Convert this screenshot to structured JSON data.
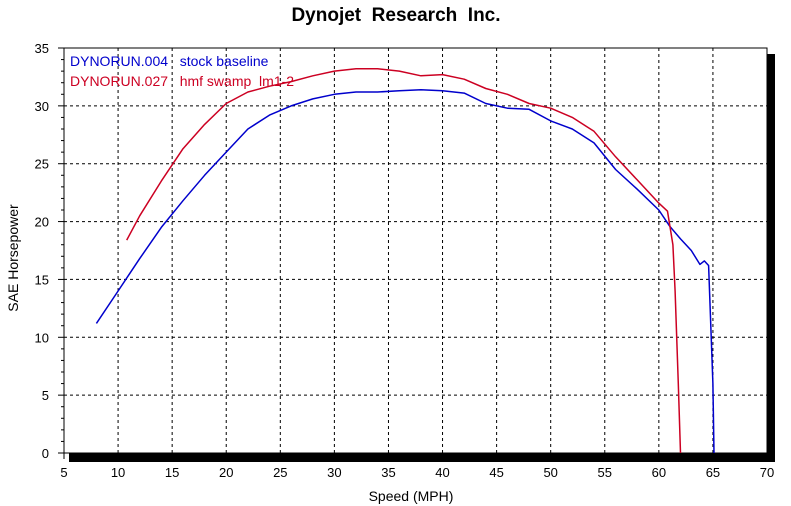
{
  "chart_data": {
    "type": "line",
    "title": "Dynojet  Research  Inc.",
    "xlabel": "Speed (MPH)",
    "ylabel": "SAE Horsepower",
    "xlim": [
      5,
      70
    ],
    "ylim": [
      0,
      35
    ],
    "xticks": [
      5,
      10,
      15,
      20,
      25,
      30,
      35,
      40,
      45,
      50,
      55,
      60,
      65,
      70
    ],
    "yticks": [
      0,
      5,
      10,
      15,
      20,
      25,
      30,
      35
    ],
    "grid": true,
    "legend": "top-left",
    "series": [
      {
        "name": "DYNORUN.004   stock baseline",
        "color": "#0000cc",
        "x": [
          8,
          10,
          12,
          14,
          16,
          18,
          20,
          22,
          24,
          26,
          28,
          30,
          32,
          34,
          36,
          38,
          40,
          42,
          44,
          46,
          48,
          50,
          52,
          54,
          56,
          58,
          60,
          61,
          62,
          63,
          63.8,
          64.2,
          64.6,
          64.8,
          65.0,
          65.1
        ],
        "y": [
          11.2,
          14.0,
          16.8,
          19.5,
          21.8,
          24.0,
          26.0,
          28.0,
          29.2,
          30.0,
          30.6,
          31.0,
          31.2,
          31.2,
          31.3,
          31.4,
          31.3,
          31.1,
          30.2,
          29.8,
          29.7,
          28.7,
          28.0,
          26.8,
          24.5,
          22.8,
          21.0,
          19.6,
          18.5,
          17.5,
          16.3,
          16.6,
          16.2,
          11.0,
          6.0,
          0
        ]
      },
      {
        "name": "DYNORUN.027   hmf swamp  lm1-2",
        "color": "#cc0022",
        "x": [
          10.8,
          12,
          14,
          16,
          18,
          20,
          22,
          24,
          26,
          28,
          30,
          32,
          34,
          36,
          38,
          40,
          42,
          44,
          46,
          48,
          50,
          52,
          54,
          56,
          58,
          60,
          60.8,
          61.3,
          61.5,
          61.8,
          62.0
        ],
        "y": [
          18.4,
          20.5,
          23.5,
          26.3,
          28.4,
          30.2,
          31.2,
          31.7,
          32.1,
          32.6,
          33.0,
          33.2,
          33.2,
          33.0,
          32.6,
          32.7,
          32.3,
          31.5,
          31.0,
          30.2,
          29.8,
          29.0,
          27.8,
          25.6,
          23.6,
          21.6,
          20.9,
          18.0,
          14.0,
          6.0,
          0
        ]
      }
    ]
  }
}
